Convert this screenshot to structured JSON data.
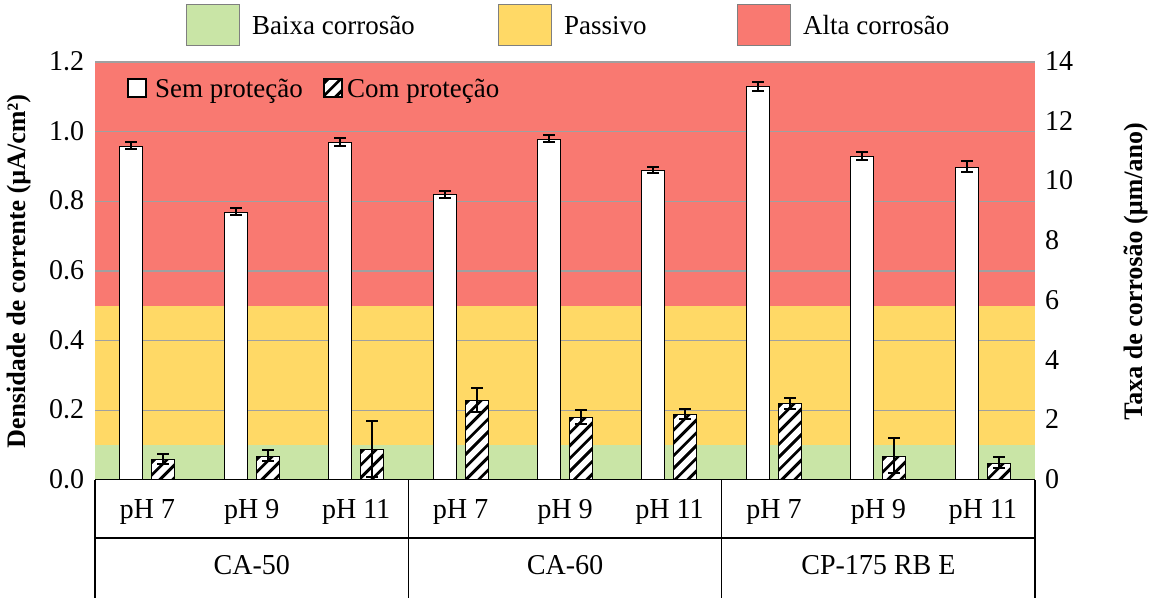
{
  "top_legend": {
    "items": [
      {
        "label": "Baixa corrosão",
        "color": "#c9e5a6"
      },
      {
        "label": "Passivo",
        "color": "#ffd966"
      },
      {
        "label": "Alta corrosão",
        "color": "#f97971"
      }
    ]
  },
  "chart_data": {
    "type": "bar",
    "title": "",
    "left_axis": {
      "label": "Densidade de corrente (µA/cm²)",
      "min": 0.0,
      "max": 1.2,
      "ticks": [
        "1.2",
        "1.0",
        "0.8",
        "0.6",
        "0.4",
        "0.2",
        "0.0"
      ]
    },
    "right_axis": {
      "label": "Taxa de corrosão (µm/ano)",
      "min": 0,
      "max": 14,
      "ticks": [
        "14",
        "12",
        "10",
        "8",
        "6",
        "4",
        "2",
        "0"
      ]
    },
    "zones": [
      {
        "name": "Baixa corrosão",
        "from": 0.0,
        "to": 0.1,
        "color": "#c9e5a6"
      },
      {
        "name": "Passivo",
        "from": 0.1,
        "to": 0.5,
        "color": "#ffd966"
      },
      {
        "name": "Alta corrosão",
        "from": 0.5,
        "to": 1.2,
        "color": "#f97971"
      }
    ],
    "gridlines": [
      0.2,
      0.4,
      0.6,
      0.8,
      1.0,
      1.2
    ],
    "grid_color": "#a0a0a0",
    "groups": [
      "CA-50",
      "CA-60",
      "CP-175 RB E"
    ],
    "categories": [
      "pH 7",
      "pH 9",
      "pH 11"
    ],
    "series": [
      {
        "name": "Sem proteção",
        "style": "white",
        "values": [
          0.96,
          0.77,
          0.97,
          0.82,
          0.98,
          0.89,
          1.13,
          0.93,
          0.9
        ],
        "errors": [
          0.01,
          0.01,
          0.012,
          0.01,
          0.01,
          0.01,
          0.012,
          0.012,
          0.015
        ]
      },
      {
        "name": "Com proteção",
        "style": "hatched",
        "values": [
          0.06,
          0.07,
          0.09,
          0.23,
          0.18,
          0.19,
          0.22,
          0.07,
          0.05
        ],
        "errors": [
          0.015,
          0.015,
          0.08,
          0.035,
          0.02,
          0.015,
          0.015,
          0.05,
          0.015
        ]
      }
    ],
    "legend_position": "top-left-inside"
  }
}
